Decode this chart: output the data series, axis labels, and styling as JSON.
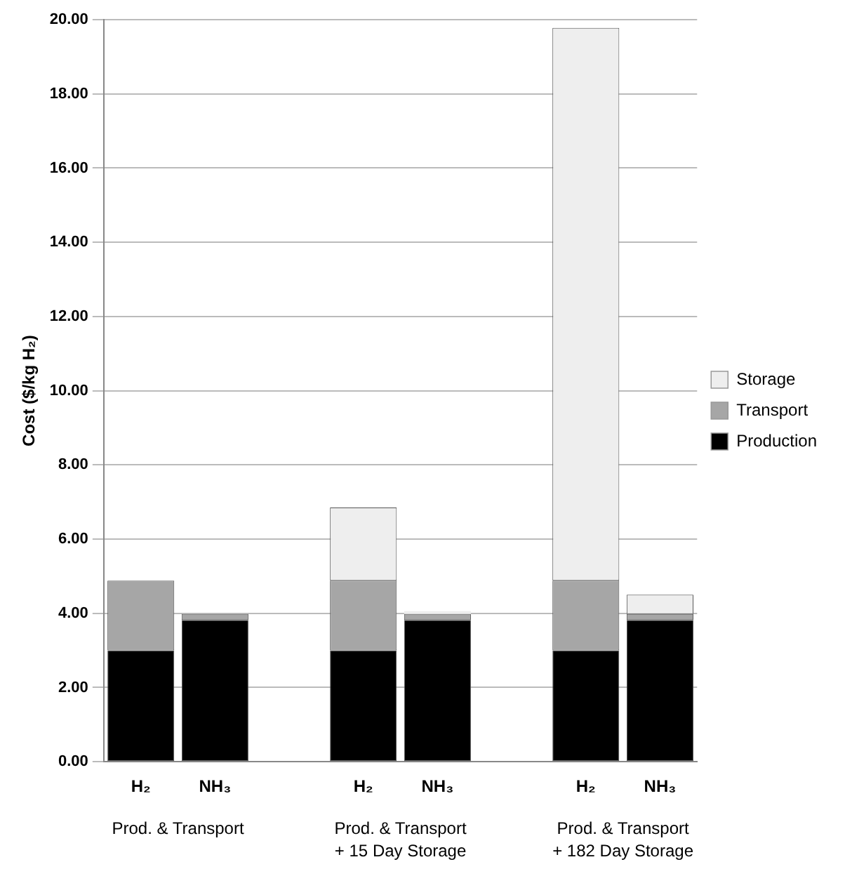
{
  "chart_data": {
    "type": "bar",
    "stacked": true,
    "ylabel": "Cost ($/kg H₂)",
    "categories": [
      "H₂",
      "NH₃",
      null,
      "H₂",
      "NH₃",
      null,
      "H₂",
      "NH₃"
    ],
    "series": [
      {
        "name": "Production",
        "color": "#000000",
        "values": [
          3.0,
          3.82,
          null,
          3.0,
          3.82,
          null,
          3.0,
          3.82
        ]
      },
      {
        "name": "Transport",
        "color": "#a6a6a6",
        "values": [
          1.88,
          0.16,
          null,
          1.88,
          0.16,
          null,
          1.88,
          0.16
        ]
      },
      {
        "name": "Storage",
        "color": "#eeeeee",
        "values": [
          null,
          null,
          null,
          1.97,
          0.08,
          null,
          14.9,
          0.52
        ]
      }
    ],
    "ylim": [
      0,
      20
    ],
    "yticks": [
      {
        "value": 0,
        "label": "0.00"
      },
      {
        "value": 2,
        "label": "2.00"
      },
      {
        "value": 4,
        "label": "4.00"
      },
      {
        "value": 6,
        "label": "6.00"
      },
      {
        "value": 8,
        "label": "8.00"
      },
      {
        "value": 10,
        "label": "10.00"
      },
      {
        "value": 12,
        "label": "12.00"
      },
      {
        "value": 14,
        "label": "14.00"
      },
      {
        "value": 16,
        "label": "16.00"
      },
      {
        "value": 18,
        "label": "18.00"
      },
      {
        "value": 20,
        "label": "20.00"
      }
    ],
    "grid": "y",
    "legend": "right",
    "annotations": [
      "Prod. & Transport",
      "Prod. & Transport\n+ 15 Day Storage",
      "Prod. & Transport\n+ 182 Day Storage"
    ]
  }
}
